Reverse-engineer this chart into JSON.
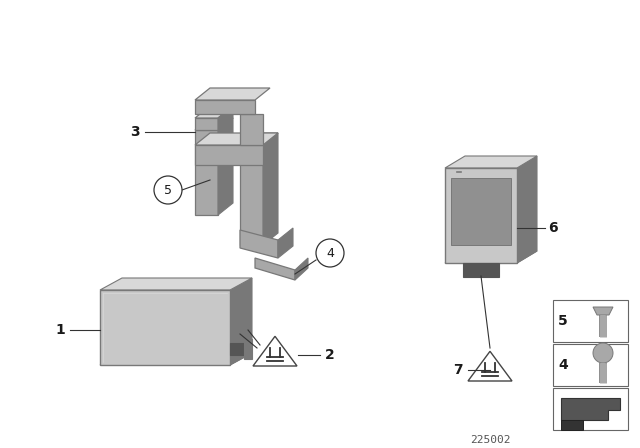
{
  "background_color": "#ffffff",
  "part_number": "225002",
  "text_color": "#1a1a1a",
  "line_color": "#333333",
  "cc": "#a8a8a8",
  "cd": "#787878",
  "cl": "#c8c8c8",
  "cll": "#d8d8d8",
  "cdark": "#555555"
}
